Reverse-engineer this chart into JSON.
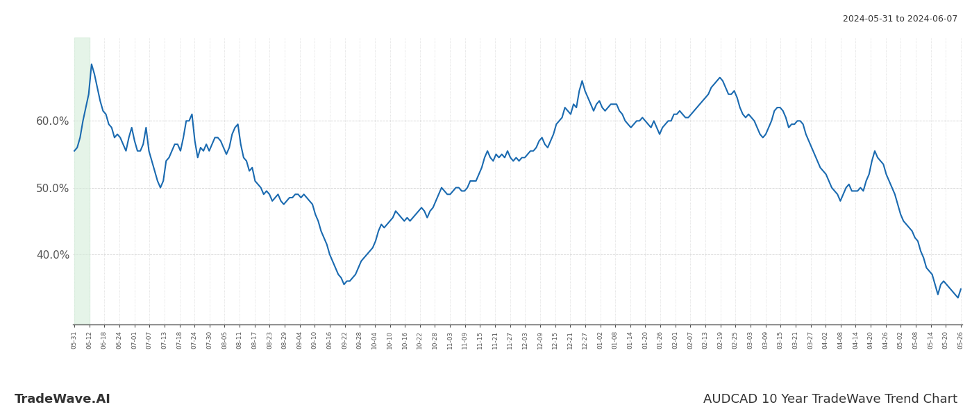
{
  "title_top_right": "2024-05-31 to 2024-06-07",
  "title_bottom_right": "AUDCAD 10 Year TradeWave Trend Chart",
  "title_bottom_left": "TradeWave.AI",
  "line_color": "#1a6ab0",
  "highlight_color": "#d4edda",
  "highlight_alpha": 0.6,
  "background_color": "#ffffff",
  "grid_color": "#cccccc",
  "ylim": [
    0.295,
    0.725
  ],
  "ytick_vals": [
    0.4,
    0.5,
    0.6
  ],
  "x_labels": [
    "05-31",
    "06-12",
    "06-18",
    "06-24",
    "07-01",
    "07-07",
    "07-13",
    "07-18",
    "07-24",
    "07-30",
    "08-05",
    "08-11",
    "08-17",
    "08-23",
    "08-29",
    "09-04",
    "09-10",
    "09-16",
    "09-22",
    "09-28",
    "10-04",
    "10-10",
    "10-16",
    "10-22",
    "10-28",
    "11-03",
    "11-09",
    "11-15",
    "11-21",
    "11-27",
    "12-03",
    "12-09",
    "12-15",
    "12-21",
    "12-27",
    "01-02",
    "01-08",
    "01-14",
    "01-20",
    "01-26",
    "02-01",
    "02-07",
    "02-13",
    "02-19",
    "02-25",
    "03-03",
    "03-09",
    "03-15",
    "03-21",
    "03-27",
    "04-02",
    "04-08",
    "04-14",
    "04-20",
    "04-26",
    "05-02",
    "05-08",
    "05-14",
    "05-20",
    "05-26"
  ],
  "line_width": 1.5,
  "values": [
    0.555,
    0.56,
    0.575,
    0.6,
    0.62,
    0.64,
    0.685,
    0.67,
    0.65,
    0.63,
    0.615,
    0.61,
    0.595,
    0.59,
    0.575,
    0.58,
    0.575,
    0.565,
    0.555,
    0.575,
    0.59,
    0.57,
    0.555,
    0.555,
    0.565,
    0.59,
    0.555,
    0.54,
    0.525,
    0.51,
    0.5,
    0.51,
    0.54,
    0.545,
    0.555,
    0.565,
    0.565,
    0.555,
    0.575,
    0.6,
    0.6,
    0.61,
    0.57,
    0.545,
    0.56,
    0.555,
    0.565,
    0.555,
    0.565,
    0.575,
    0.575,
    0.57,
    0.56,
    0.55,
    0.56,
    0.58,
    0.59,
    0.595,
    0.565,
    0.545,
    0.54,
    0.525,
    0.53,
    0.51,
    0.505,
    0.5,
    0.49,
    0.495,
    0.49,
    0.48,
    0.485,
    0.49,
    0.48,
    0.475,
    0.48,
    0.485,
    0.485,
    0.49,
    0.49,
    0.485,
    0.49,
    0.485,
    0.48,
    0.475,
    0.46,
    0.45,
    0.435,
    0.425,
    0.415,
    0.4,
    0.39,
    0.38,
    0.37,
    0.365,
    0.355,
    0.36,
    0.36,
    0.365,
    0.37,
    0.38,
    0.39,
    0.395,
    0.4,
    0.405,
    0.41,
    0.42,
    0.435,
    0.445,
    0.44,
    0.445,
    0.45,
    0.455,
    0.465,
    0.46,
    0.455,
    0.45,
    0.455,
    0.45,
    0.455,
    0.46,
    0.465,
    0.47,
    0.465,
    0.455,
    0.465,
    0.47,
    0.48,
    0.49,
    0.5,
    0.495,
    0.49,
    0.49,
    0.495,
    0.5,
    0.5,
    0.495,
    0.495,
    0.5,
    0.51,
    0.51,
    0.51,
    0.52,
    0.53,
    0.545,
    0.555,
    0.545,
    0.54,
    0.55,
    0.545,
    0.55,
    0.545,
    0.555,
    0.545,
    0.54,
    0.545,
    0.54,
    0.545,
    0.545,
    0.55,
    0.555,
    0.555,
    0.56,
    0.57,
    0.575,
    0.565,
    0.56,
    0.57,
    0.58,
    0.595,
    0.6,
    0.605,
    0.62,
    0.615,
    0.61,
    0.625,
    0.62,
    0.645,
    0.66,
    0.645,
    0.635,
    0.625,
    0.615,
    0.625,
    0.63,
    0.62,
    0.615,
    0.62,
    0.625,
    0.625,
    0.625,
    0.615,
    0.61,
    0.6,
    0.595,
    0.59,
    0.595,
    0.6,
    0.6,
    0.605,
    0.6,
    0.595,
    0.59,
    0.6,
    0.59,
    0.58,
    0.59,
    0.595,
    0.6,
    0.6,
    0.61,
    0.61,
    0.615,
    0.61,
    0.605,
    0.605,
    0.61,
    0.615,
    0.62,
    0.625,
    0.63,
    0.635,
    0.64,
    0.65,
    0.655,
    0.66,
    0.665,
    0.66,
    0.65,
    0.64,
    0.64,
    0.645,
    0.635,
    0.62,
    0.61,
    0.605,
    0.61,
    0.605,
    0.6,
    0.59,
    0.58,
    0.575,
    0.58,
    0.59,
    0.6,
    0.615,
    0.62,
    0.62,
    0.615,
    0.605,
    0.59,
    0.595,
    0.595,
    0.6,
    0.6,
    0.595,
    0.58,
    0.57,
    0.56,
    0.55,
    0.54,
    0.53,
    0.525,
    0.52,
    0.51,
    0.5,
    0.495,
    0.49,
    0.48,
    0.49,
    0.5,
    0.505,
    0.495,
    0.495,
    0.495,
    0.5,
    0.495,
    0.51,
    0.52,
    0.54,
    0.555,
    0.545,
    0.54,
    0.535,
    0.52,
    0.51,
    0.5,
    0.49,
    0.475,
    0.46,
    0.45,
    0.445,
    0.44,
    0.435,
    0.425,
    0.42,
    0.405,
    0.395,
    0.38,
    0.375,
    0.37,
    0.355,
    0.34,
    0.355,
    0.36,
    0.355,
    0.35,
    0.345,
    0.34,
    0.335,
    0.348
  ]
}
